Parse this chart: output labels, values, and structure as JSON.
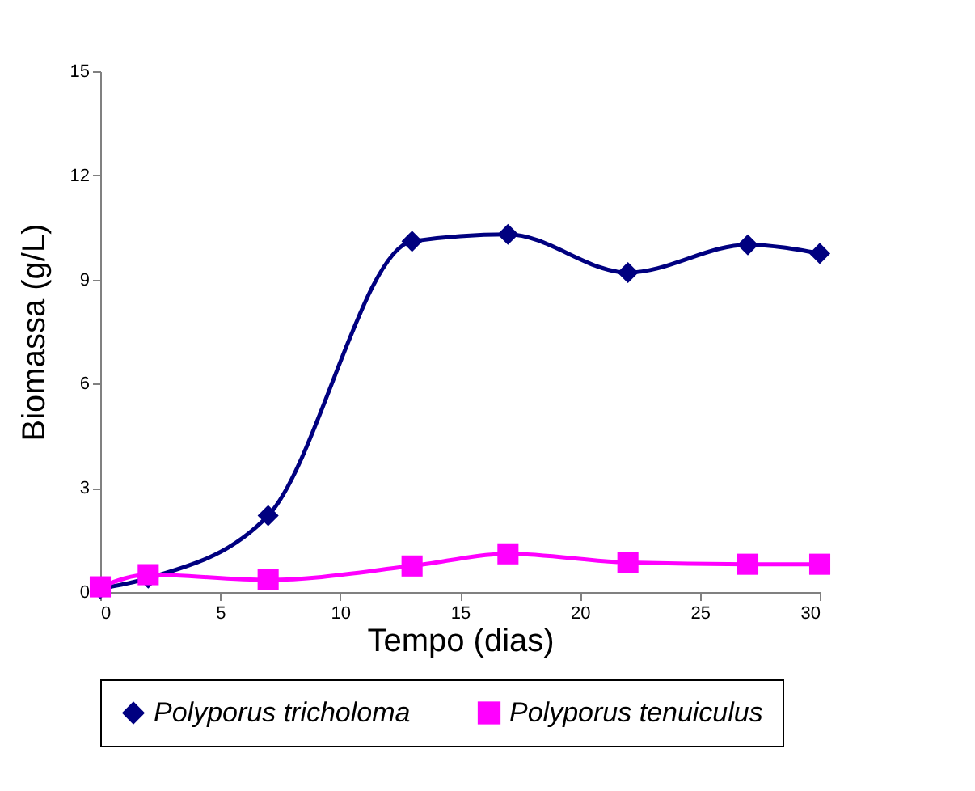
{
  "chart_data": {
    "type": "line",
    "xlabel": "Tempo (dias)",
    "ylabel": "Biomassa (g/L)",
    "x": [
      0,
      2,
      7,
      13,
      17,
      22,
      27,
      30
    ],
    "series": [
      {
        "name": "Polyporus tricholoma",
        "color": "#000080",
        "marker": "diamond",
        "values": [
          0.1,
          0.4,
          2.2,
          10.1,
          10.3,
          9.2,
          10.0,
          9.75
        ]
      },
      {
        "name": "Polyporus tenuiculus",
        "color": "#ff00ff",
        "marker": "square",
        "values": [
          0.15,
          0.5,
          0.35,
          0.75,
          1.1,
          0.85,
          0.8,
          0.8
        ]
      }
    ],
    "xlim": [
      0,
      30
    ],
    "xticks": [
      0,
      5,
      10,
      15,
      20,
      25,
      30
    ],
    "ylim": [
      0,
      15
    ],
    "yticks": [
      0,
      3,
      6,
      9,
      12,
      15
    ],
    "grid": false,
    "legend": "bottom"
  }
}
